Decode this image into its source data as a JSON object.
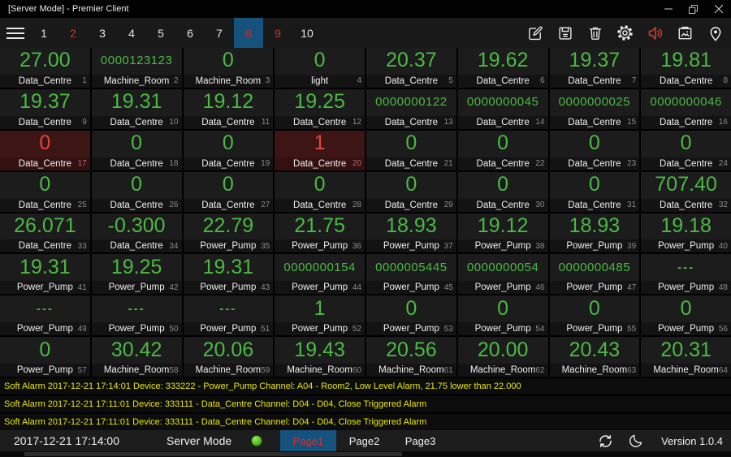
{
  "titlebar": {
    "title": "[Server Mode] - Premier Client",
    "window_controls": [
      "minimize",
      "maximize",
      "close"
    ]
  },
  "toolbar": {
    "menu_icon": "hamburger-menu-icon",
    "page_numbers": [
      {
        "label": "1",
        "state": "normal"
      },
      {
        "label": "2",
        "state": "alert"
      },
      {
        "label": "3",
        "state": "normal"
      },
      {
        "label": "4",
        "state": "normal"
      },
      {
        "label": "5",
        "state": "normal"
      },
      {
        "label": "6",
        "state": "normal"
      },
      {
        "label": "7",
        "state": "normal"
      },
      {
        "label": "8",
        "state": "active"
      },
      {
        "label": "9",
        "state": "alert"
      },
      {
        "label": "10",
        "state": "normal"
      }
    ],
    "action_icons": [
      "edit-icon",
      "save-icon",
      "delete-icon",
      "settings-icon",
      "volume-icon",
      "snapshot-icon",
      "location-pin-icon"
    ]
  },
  "grid": {
    "cells": [
      {
        "value": "27.00",
        "label": "Data_Centre",
        "index": 1
      },
      {
        "value": "0000123123",
        "label": "Machine_Room",
        "index": 2,
        "small": true
      },
      {
        "value": "0",
        "label": "Machine_Room",
        "index": 3
      },
      {
        "value": "0",
        "label": "light",
        "index": 4
      },
      {
        "value": "20.37",
        "label": "Data_Centre",
        "index": 5
      },
      {
        "value": "19.62",
        "label": "Data_Centre",
        "index": 6
      },
      {
        "value": "19.37",
        "label": "Data_Centre",
        "index": 7
      },
      {
        "value": "19.81",
        "label": "Data_Centre",
        "index": 8
      },
      {
        "value": "19.37",
        "label": "Data_Centre",
        "index": 9
      },
      {
        "value": "19.31",
        "label": "Data_Centre",
        "index": 10
      },
      {
        "value": "19.12",
        "label": "Data_Centre",
        "index": 11
      },
      {
        "value": "19.25",
        "label": "Data_Centre",
        "index": 12
      },
      {
        "value": "0000000122",
        "label": "Data_Centre",
        "index": 13,
        "small": true
      },
      {
        "value": "0000000045",
        "label": "Data_Centre",
        "index": 14,
        "small": true
      },
      {
        "value": "0000000025",
        "label": "Data_Centre",
        "index": 15,
        "small": true
      },
      {
        "value": "0000000046",
        "label": "Data_Centre",
        "index": 16,
        "small": true
      },
      {
        "value": "0",
        "label": "Data_Centre",
        "index": 17,
        "alarm": true
      },
      {
        "value": "0",
        "label": "Data_Centre",
        "index": 18
      },
      {
        "value": "0",
        "label": "Data_Centre",
        "index": 19
      },
      {
        "value": "1",
        "label": "Data_Centre",
        "index": 20,
        "alarm": true
      },
      {
        "value": "0",
        "label": "Data_Centre",
        "index": 21
      },
      {
        "value": "0",
        "label": "Data_Centre",
        "index": 22
      },
      {
        "value": "0",
        "label": "Data_Centre",
        "index": 23
      },
      {
        "value": "0",
        "label": "Data_Centre",
        "index": 24
      },
      {
        "value": "0",
        "label": "Data_Centre",
        "index": 25
      },
      {
        "value": "0",
        "label": "Data_Centre",
        "index": 26
      },
      {
        "value": "0",
        "label": "Data_Centre",
        "index": 27
      },
      {
        "value": "0",
        "label": "Data_Centre",
        "index": 28
      },
      {
        "value": "0",
        "label": "Data_Centre",
        "index": 29
      },
      {
        "value": "0",
        "label": "Data_Centre",
        "index": 30
      },
      {
        "value": "0",
        "label": "Data_Centre",
        "index": 31
      },
      {
        "value": "707.40",
        "label": "Data_Centre",
        "index": 32
      },
      {
        "value": "26.071",
        "label": "Data_Centre",
        "index": 33
      },
      {
        "value": "-0.300",
        "label": "Data_Centre",
        "index": 34
      },
      {
        "value": "22.79",
        "label": "Power_Pump",
        "index": 35
      },
      {
        "value": "21.75",
        "label": "Power_Pump",
        "index": 36
      },
      {
        "value": "18.93",
        "label": "Power_Pump",
        "index": 37
      },
      {
        "value": "19.12",
        "label": "Power_Pump",
        "index": 38
      },
      {
        "value": "18.93",
        "label": "Power_Pump",
        "index": 39
      },
      {
        "value": "19.18",
        "label": "Power_Pump",
        "index": 40
      },
      {
        "value": "19.31",
        "label": "Power_Pump",
        "index": 41
      },
      {
        "value": "19.25",
        "label": "Power_Pump",
        "index": 42
      },
      {
        "value": "19.31",
        "label": "Power_Pump",
        "index": 43
      },
      {
        "value": "0000000154",
        "label": "Power_Pump",
        "index": 44,
        "small": true
      },
      {
        "value": "0000005445",
        "label": "Power_Pump",
        "index": 45,
        "small": true
      },
      {
        "value": "0000000054",
        "label": "Power_Pump",
        "index": 46,
        "small": true
      },
      {
        "value": "0000000485",
        "label": "Power_Pump",
        "index": 47,
        "small": true
      },
      {
        "value": "---",
        "label": "Power_Pump",
        "index": 48,
        "dash": true
      },
      {
        "value": "---",
        "label": "Power_Pump",
        "index": 49,
        "dash": true
      },
      {
        "value": "---",
        "label": "Power_Pump",
        "index": 50,
        "dash": true
      },
      {
        "value": "---",
        "label": "Power_Pump",
        "index": 51,
        "dash": true
      },
      {
        "value": "1",
        "label": "Power_Pump",
        "index": 52
      },
      {
        "value": "0",
        "label": "Power_Pump",
        "index": 53
      },
      {
        "value": "0",
        "label": "Power_Pump",
        "index": 54
      },
      {
        "value": "0",
        "label": "Power_Pump",
        "index": 55
      },
      {
        "value": "0",
        "label": "Power_Pump",
        "index": 56
      },
      {
        "value": "0",
        "label": "Power_Pump",
        "index": 57
      },
      {
        "value": "30.42",
        "label": "Machine_Room",
        "index": 58
      },
      {
        "value": "20.06",
        "label": "Machine_Room",
        "index": 59
      },
      {
        "value": "19.43",
        "label": "Machine_Room",
        "index": 60
      },
      {
        "value": "20.56",
        "label": "Machine_Room",
        "index": 61
      },
      {
        "value": "20.00",
        "label": "Machine_Room",
        "index": 62
      },
      {
        "value": "20.43",
        "label": "Machine_Room",
        "index": 63
      },
      {
        "value": "20.31",
        "label": "Machine_Room",
        "index": 64
      }
    ]
  },
  "alarm_log": {
    "entries": [
      "Soft Alarm 2017-12-21 17:14:01 Device: 333222 - Power_Pump Channel: A04 - Room2, Low Level Alarm, 21.75 lower than 22.000",
      "Soft Alarm 2017-12-21 17:11:01 Device: 333111 - Data_Centre Channel: D04 - D04, Close Triggered Alarm",
      "Soft Alarm 2017-12-21 17:11:01 Device: 333111 - Data_Centre Channel: D04 - D04, Close Triggered Alarm"
    ]
  },
  "footer": {
    "timestamp": "2017-12-21 17:14:00",
    "mode_label": "Server Mode",
    "status": "online",
    "tabs": [
      {
        "label": "Page1",
        "active": true
      },
      {
        "label": "Page2",
        "active": false
      },
      {
        "label": "Page3",
        "active": false
      }
    ],
    "icons": [
      "sync-icon",
      "moon-icon"
    ],
    "version": "Version 1.0.4"
  },
  "colors": {
    "accent_blue": "#15527e",
    "value_green": "#4bb944",
    "alert_red": "#c5302c",
    "alarm_cell_bg": "#3d1515",
    "alarm_text_yellow": "#e9e900"
  }
}
